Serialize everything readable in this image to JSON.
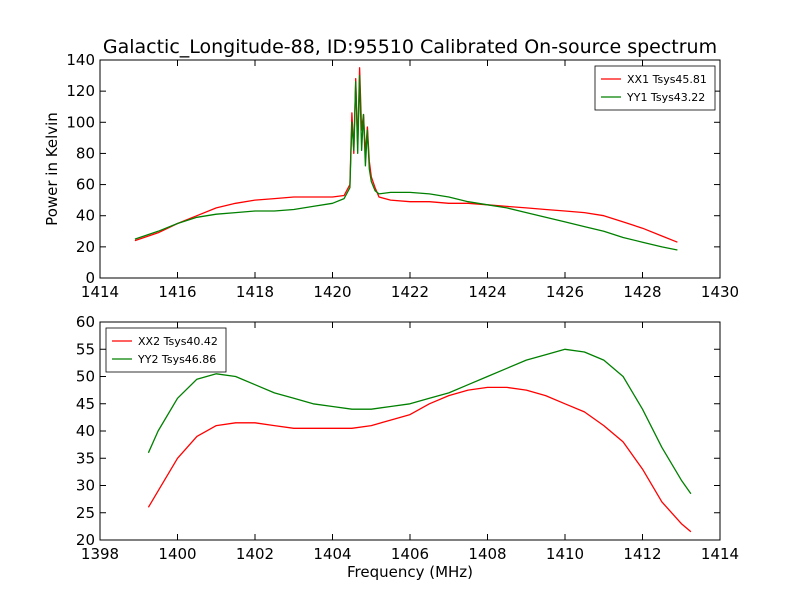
{
  "title": "Galactic_Longitude-88, ID:95510 Calibrated On-source spectrum",
  "colors": {
    "red": "#ff0000",
    "green": "#008000",
    "axis": "#000000",
    "background": "#ffffff"
  },
  "chart_data": [
    {
      "type": "line",
      "title": "Galactic_Longitude-88, ID:95510 Calibrated On-source spectrum",
      "xlabel": "",
      "ylabel": "Power in Kelvin",
      "xlim": [
        1414,
        1430
      ],
      "ylim": [
        0,
        140
      ],
      "xticks": [
        1414,
        1416,
        1418,
        1420,
        1422,
        1424,
        1426,
        1428,
        1430
      ],
      "yticks": [
        0,
        20,
        40,
        60,
        80,
        100,
        120,
        140
      ],
      "legend_position": "top-right",
      "grid": false,
      "series": [
        {
          "name": "XX1 Tsys45.81",
          "color": "#ff0000",
          "x": [
            1414.9,
            1415.5,
            1416.0,
            1416.5,
            1417.0,
            1417.5,
            1418.0,
            1418.5,
            1419.0,
            1419.5,
            1420.0,
            1420.3,
            1420.45,
            1420.5,
            1420.55,
            1420.6,
            1420.65,
            1420.7,
            1420.75,
            1420.8,
            1420.85,
            1420.9,
            1420.95,
            1421.0,
            1421.1,
            1421.2,
            1421.5,
            1422.0,
            1422.5,
            1423.0,
            1423.5,
            1424.0,
            1424.5,
            1425.0,
            1425.5,
            1426.0,
            1426.5,
            1427.0,
            1427.5,
            1428.0,
            1428.5,
            1428.9
          ],
          "y": [
            24,
            29,
            35,
            40,
            45,
            48,
            50,
            51,
            52,
            52,
            52,
            53,
            60,
            106,
            80,
            128,
            85,
            135,
            95,
            105,
            80,
            97,
            75,
            65,
            58,
            52,
            50,
            49,
            49,
            48,
            48,
            47,
            46,
            45,
            44,
            43,
            42,
            40,
            36,
            32,
            27,
            23
          ]
        },
        {
          "name": "YY1 Tsys43.22",
          "color": "#008000",
          "x": [
            1414.9,
            1415.5,
            1416.0,
            1416.5,
            1417.0,
            1417.5,
            1418.0,
            1418.5,
            1419.0,
            1419.5,
            1420.0,
            1420.3,
            1420.45,
            1420.5,
            1420.55,
            1420.6,
            1420.65,
            1420.7,
            1420.75,
            1420.8,
            1420.85,
            1420.9,
            1420.95,
            1421.0,
            1421.1,
            1421.2,
            1421.5,
            1422.0,
            1422.5,
            1423.0,
            1423.5,
            1424.0,
            1424.5,
            1425.0,
            1425.5,
            1426.0,
            1426.5,
            1427.0,
            1427.5,
            1428.0,
            1428.5,
            1428.9
          ],
          "y": [
            25,
            30,
            35,
            39,
            41,
            42,
            43,
            43,
            44,
            46,
            48,
            51,
            58,
            100,
            82,
            126,
            80,
            130,
            82,
            105,
            72,
            95,
            70,
            62,
            56,
            54,
            55,
            55,
            54,
            52,
            49,
            47,
            45,
            42,
            39,
            36,
            33,
            30,
            26,
            23,
            20,
            18
          ]
        }
      ]
    },
    {
      "type": "line",
      "title": "",
      "xlabel": "Frequency (MHz)",
      "ylabel": "",
      "xlim": [
        1398,
        1414
      ],
      "ylim": [
        20,
        60
      ],
      "xticks": [
        1398,
        1400,
        1402,
        1404,
        1406,
        1408,
        1410,
        1412,
        1414
      ],
      "yticks": [
        20,
        25,
        30,
        35,
        40,
        45,
        50,
        55,
        60
      ],
      "legend_position": "top-left",
      "grid": false,
      "series": [
        {
          "name": "XX2 Tsys40.42",
          "color": "#ff0000",
          "x": [
            1399.25,
            1399.5,
            1400.0,
            1400.5,
            1401.0,
            1401.5,
            1402.0,
            1402.5,
            1403.0,
            1403.5,
            1404.0,
            1404.5,
            1405.0,
            1405.5,
            1406.0,
            1406.5,
            1407.0,
            1407.5,
            1408.0,
            1408.5,
            1409.0,
            1409.5,
            1410.0,
            1410.5,
            1411.0,
            1411.5,
            1412.0,
            1412.5,
            1413.0,
            1413.25
          ],
          "y": [
            26,
            29,
            35,
            39,
            41,
            41.5,
            41.5,
            41,
            40.5,
            40.5,
            40.5,
            40.5,
            41,
            42,
            43,
            45,
            46.5,
            47.5,
            48,
            48,
            47.5,
            46.5,
            45,
            43.5,
            41,
            38,
            33,
            27,
            23,
            21.5
          ]
        },
        {
          "name": "YY2 Tsys46.86",
          "color": "#008000",
          "x": [
            1399.25,
            1399.5,
            1400.0,
            1400.5,
            1401.0,
            1401.5,
            1402.0,
            1402.5,
            1403.0,
            1403.5,
            1404.0,
            1404.5,
            1405.0,
            1405.5,
            1406.0,
            1406.5,
            1407.0,
            1407.5,
            1408.0,
            1408.5,
            1409.0,
            1409.5,
            1410.0,
            1410.5,
            1411.0,
            1411.5,
            1412.0,
            1412.5,
            1413.0,
            1413.25
          ],
          "y": [
            36,
            40,
            46,
            49.5,
            50.5,
            50,
            48.5,
            47,
            46,
            45,
            44.5,
            44,
            44,
            44.5,
            45,
            46,
            47,
            48.5,
            50,
            51.5,
            53,
            54,
            55,
            54.5,
            53,
            50,
            44,
            37,
            31,
            28.5
          ]
        }
      ]
    }
  ]
}
